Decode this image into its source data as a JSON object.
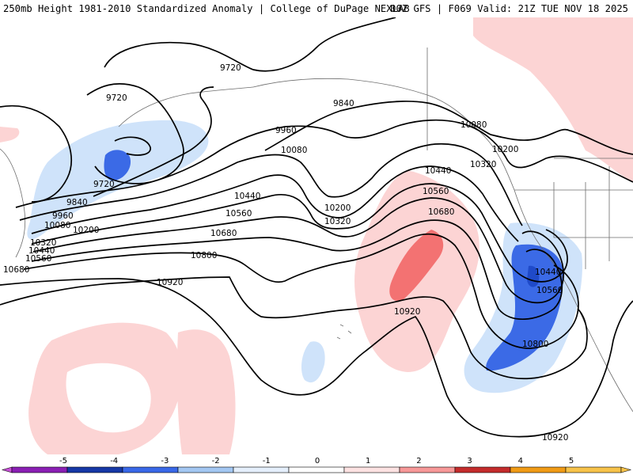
{
  "title": {
    "left": "250mb Height 1981-2010 Standardized Anomaly | College of DuPage NEXLAB",
    "right": "00Z GFS | F069 Valid: 21Z TUE NOV 18 2025"
  },
  "contour_labels": [
    {
      "id": "9720-a",
      "text": "9720"
    },
    {
      "id": "9720-b",
      "text": "9720"
    },
    {
      "id": "9720-c",
      "text": "9720"
    },
    {
      "id": "9840-a",
      "text": "9840"
    },
    {
      "id": "9840-b",
      "text": "9840"
    },
    {
      "id": "9960-a",
      "text": "9960"
    },
    {
      "id": "9960-b",
      "text": "9960"
    },
    {
      "id": "10080-a",
      "text": "10080"
    },
    {
      "id": "10080-b",
      "text": "10080"
    },
    {
      "id": "10080-c",
      "text": "10080"
    },
    {
      "id": "10200-a",
      "text": "10200"
    },
    {
      "id": "10200-b",
      "text": "10200"
    },
    {
      "id": "10200-c",
      "text": "10200"
    },
    {
      "id": "10320-a",
      "text": "10320"
    },
    {
      "id": "10320-b",
      "text": "10320"
    },
    {
      "id": "10320-c",
      "text": "10320"
    },
    {
      "id": "10440-a",
      "text": "10440"
    },
    {
      "id": "10440-b",
      "text": "10440"
    },
    {
      "id": "10440-c",
      "text": "10440"
    },
    {
      "id": "10440-d",
      "text": "10440"
    },
    {
      "id": "10560-a",
      "text": "10560"
    },
    {
      "id": "10560-b",
      "text": "10560"
    },
    {
      "id": "10560-c",
      "text": "10560"
    },
    {
      "id": "10560-d",
      "text": "10560"
    },
    {
      "id": "10680-a",
      "text": "10680"
    },
    {
      "id": "10680-b",
      "text": "10680"
    },
    {
      "id": "10680-c",
      "text": "10680"
    },
    {
      "id": "10800-a",
      "text": "10800"
    },
    {
      "id": "10800-b",
      "text": "10800"
    },
    {
      "id": "10920-a",
      "text": "10920"
    },
    {
      "id": "10920-b",
      "text": "10920"
    },
    {
      "id": "10920-c",
      "text": "10920"
    }
  ],
  "colorbar": {
    "ticks": [
      "-5",
      "-4",
      "-3",
      "-2",
      "-1",
      "0",
      "1",
      "2",
      "3",
      "4",
      "5"
    ],
    "colors": [
      "#8a1fb4",
      "#1638a6",
      "#3968e8",
      "#a3c7f2",
      "#e5effc",
      "#ffffff",
      "#fde2e2",
      "#f79898",
      "#c42c2c",
      "#f09b16",
      "#f7c34a"
    ],
    "left_end_color": "#c94fd8",
    "right_end_color": "#f7c34a"
  },
  "colors": {
    "anom_neg_1": "#cfe3fa",
    "anom_neg_2": "#6f9ff1",
    "anom_neg_3": "#3b6ae6",
    "anom_neg_4": "#1f4ac9",
    "anom_pos_1": "#fcd4d4",
    "anom_pos_2": "#f37272"
  }
}
